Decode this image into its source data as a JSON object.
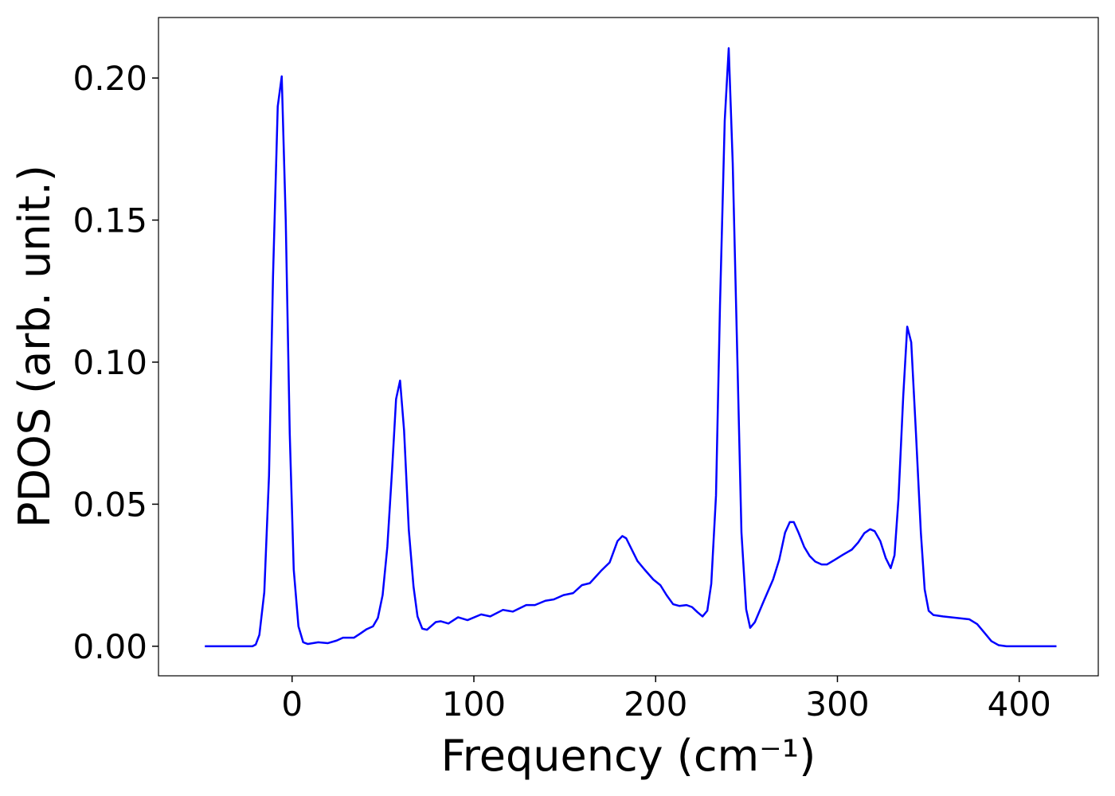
{
  "chart_data": {
    "type": "line",
    "xlabel": "Frequency (cm⁻¹)",
    "ylabel": "PDOS (arb. unit.)",
    "xlim": [
      -73.5,
      443.5
    ],
    "ylim": [
      -0.0104,
      0.2213
    ],
    "xticks": [
      0,
      100,
      200,
      300,
      400
    ],
    "yticks": [
      {
        "value": 0,
        "label": "0.00"
      },
      {
        "value": 0.05,
        "label": "0.05"
      },
      {
        "value": 0.1,
        "label": "0.10"
      },
      {
        "value": 0.15,
        "label": "0.15"
      },
      {
        "value": 0.2,
        "label": "0.20"
      }
    ],
    "grid": false,
    "series": [
      {
        "color": "#0000ff",
        "x": [
          -48,
          -21.8,
          -20,
          -18,
          -15.3,
          -12.7,
          -10.5,
          -7.9,
          -5.7,
          -3.5,
          -1.3,
          0.9,
          3.5,
          6.1,
          8.7,
          14.4,
          19.7,
          24.5,
          28,
          34,
          37.6,
          41,
          44.5,
          47.2,
          49.8,
          52.4,
          55,
          57.2,
          59.4,
          61.6,
          64.2,
          66.8,
          69,
          71.6,
          74.2,
          79,
          81.7,
          86,
          91.3,
          96.5,
          104,
          109,
          116,
          121.4,
          128.8,
          133.6,
          139.3,
          144,
          149.3,
          154.6,
          159.4,
          163.8,
          169.9,
          174.7,
          179,
          181.7,
          183.8,
          186.9,
          190,
          193.9,
          198.7,
          202.6,
          206,
          209.6,
          213,
          217,
          220,
          223,
          225.8,
          228.4,
          230.6,
          233.2,
          235.4,
          238,
          240.2,
          242.4,
          245,
          247.2,
          249.8,
          252,
          254.6,
          259.4,
          264.6,
          268,
          271.2,
          273.8,
          276,
          278.6,
          281.7,
          284.7,
          287.8,
          291.3,
          294.3,
          298.7,
          303,
          307.9,
          311.4,
          314.8,
          318,
          320.5,
          323.6,
          326.6,
          329.3,
          331.4,
          333.6,
          336.2,
          338.4,
          340.6,
          343.2,
          345.9,
          348,
          350.2,
          352.8,
          358,
          372.5,
          376.9,
          381.2,
          384.7,
          388.6,
          393,
          420.5
        ],
        "values": [
          0,
          0,
          0.0006,
          0.004,
          0.019,
          0.06,
          0.13,
          0.19,
          0.2006,
          0.15,
          0.075,
          0.027,
          0.007,
          0.0014,
          0.0008,
          0.0014,
          0.0011,
          0.002,
          0.003,
          0.003,
          0.0045,
          0.006,
          0.007,
          0.01,
          0.018,
          0.035,
          0.062,
          0.087,
          0.0935,
          0.076,
          0.041,
          0.021,
          0.0105,
          0.0062,
          0.0058,
          0.0085,
          0.0088,
          0.008,
          0.0102,
          0.0092,
          0.0112,
          0.0105,
          0.0128,
          0.0122,
          0.0145,
          0.0145,
          0.016,
          0.0165,
          0.018,
          0.0187,
          0.0215,
          0.0222,
          0.0265,
          0.0295,
          0.037,
          0.0388,
          0.038,
          0.034,
          0.03,
          0.027,
          0.0235,
          0.0215,
          0.018,
          0.0148,
          0.0142,
          0.0145,
          0.0138,
          0.012,
          0.0105,
          0.0125,
          0.022,
          0.053,
          0.12,
          0.185,
          0.2105,
          0.17,
          0.1,
          0.04,
          0.013,
          0.0065,
          0.0085,
          0.0158,
          0.0235,
          0.0305,
          0.04,
          0.0437,
          0.0437,
          0.04,
          0.035,
          0.0318,
          0.0298,
          0.0288,
          0.0288,
          0.0305,
          0.0322,
          0.034,
          0.0365,
          0.0398,
          0.0412,
          0.0405,
          0.037,
          0.031,
          0.0275,
          0.032,
          0.052,
          0.088,
          0.1125,
          0.107,
          0.075,
          0.04,
          0.02,
          0.0125,
          0.011,
          0.0105,
          0.0095,
          0.0078,
          0.0045,
          0.0018,
          0.0004,
          0,
          0
        ]
      }
    ]
  }
}
